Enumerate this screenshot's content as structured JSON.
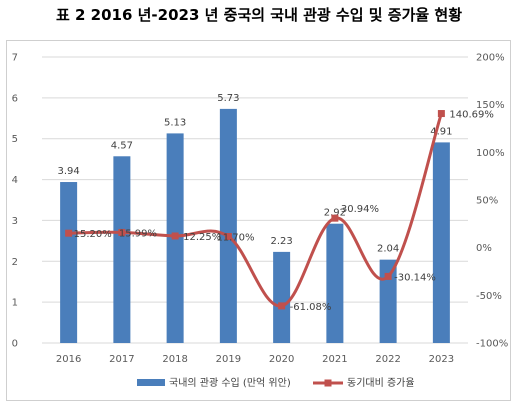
{
  "title": "표 2 2016 년-2023 년 중국의 국내 관광 수입 및 증가율 현황",
  "chart_data": {
    "type": "bar",
    "categories": [
      "2016",
      "2017",
      "2018",
      "2019",
      "2020",
      "2021",
      "2022",
      "2023"
    ],
    "series": [
      {
        "name": "국내의 관광 수입 (만억 위안)",
        "type": "bar",
        "axis": "left",
        "color": "#4a7ebb",
        "values": [
          3.94,
          4.57,
          5.13,
          5.73,
          2.23,
          2.92,
          2.04,
          4.91
        ],
        "labels": [
          "3.94",
          "4.57",
          "5.13",
          "5.73",
          "2.23",
          "2.92",
          "2.04",
          "4.91"
        ]
      },
      {
        "name": "동기대비 증가율",
        "type": "line",
        "axis": "right",
        "color": "#c0504d",
        "values": [
          15.2,
          15.99,
          12.25,
          11.7,
          -61.08,
          30.94,
          -30.14,
          140.69
        ],
        "labels": [
          "15.20%",
          "15.99%",
          "12.25%",
          "11.70%",
          "-61.08%",
          "30.94%",
          "-30.14%",
          "140.69%"
        ]
      }
    ],
    "left_axis": {
      "min": 0,
      "max": 7,
      "ticks": [
        "0",
        "1",
        "2",
        "3",
        "4",
        "5",
        "6",
        "7"
      ]
    },
    "right_axis": {
      "min": -100,
      "max": 200,
      "ticks": [
        "-100%",
        "-50%",
        "0%",
        "50%",
        "100%",
        "150%",
        "200%"
      ]
    },
    "grid": true,
    "legend_position": "bottom"
  }
}
